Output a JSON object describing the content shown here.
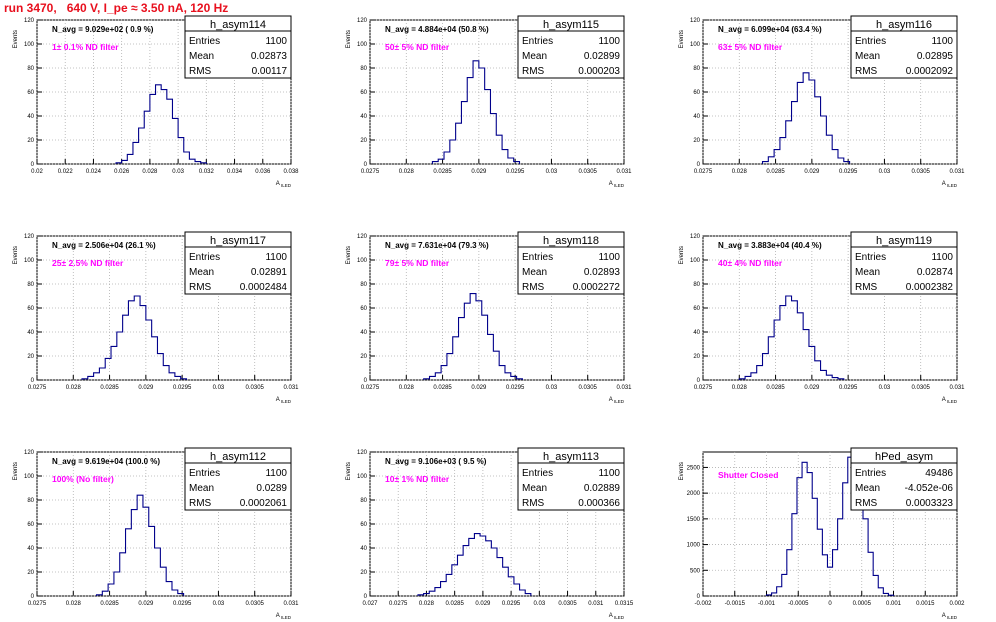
{
  "page": {
    "title": "run 3470,   640 V, I_pe ≈ 3.50 nA, 120 Hz"
  },
  "chart_data": [
    {
      "type": "histogram",
      "hist_name": "h_asym114",
      "navg_text": "N_avg = 9.029e+02 ( 0.9 %)",
      "filter_text": "1± 0.1% ND filter",
      "stats": {
        "entries_label": "Entries",
        "entries": "1100",
        "mean_label": "Mean",
        "mean": "0.02873",
        "rms_label": "RMS",
        "rms": "0.00117"
      },
      "ylabel": "Events",
      "xlabel": "A_ILED",
      "xlim": [
        0.02,
        0.038
      ],
      "ylim": [
        0,
        120
      ],
      "xticks": [
        0.02,
        0.022,
        0.024,
        0.026,
        0.028,
        0.03,
        0.032,
        0.034,
        0.036,
        0.038
      ],
      "xtick_labels": [
        "0.02",
        "0.022",
        "0.024",
        "0.026",
        "0.028",
        "0.03",
        "0.032",
        "0.034",
        "0.036",
        "0.038"
      ],
      "yticks": [
        0,
        20,
        40,
        60,
        80,
        100,
        120
      ],
      "ytick_labels": [
        "0",
        "20",
        "40",
        "60",
        "80",
        "100",
        "120"
      ],
      "x": [
        0.0258,
        0.0262,
        0.0266,
        0.027,
        0.0274,
        0.0278,
        0.0282,
        0.0286,
        0.029,
        0.0294,
        0.0298,
        0.0302,
        0.0306,
        0.031,
        0.0314,
        0.0318
      ],
      "y": [
        1,
        3,
        8,
        18,
        30,
        44,
        58,
        66,
        62,
        54,
        38,
        22,
        10,
        4,
        2,
        1
      ]
    },
    {
      "type": "histogram",
      "hist_name": "h_asym115",
      "navg_text": "N_avg = 4.884e+04 (50.8 %)",
      "filter_text": "50± 5% ND filter",
      "stats": {
        "entries_label": "Entries",
        "entries": "1100",
        "mean_label": "Mean",
        "mean": "0.02899",
        "rms_label": "RMS",
        "rms": "0.000203"
      },
      "ylabel": "Events",
      "xlabel": "A_ILED",
      "xlim": [
        0.0275,
        0.031
      ],
      "ylim": [
        0,
        120
      ],
      "xticks": [
        0.0275,
        0.028,
        0.0285,
        0.029,
        0.0295,
        0.03,
        0.0305,
        0.031
      ],
      "xtick_labels": [
        "0.0275",
        "0.028",
        "0.0285",
        "0.029",
        "0.0295",
        "0.03",
        "0.0305",
        "0.031"
      ],
      "yticks": [
        0,
        20,
        40,
        60,
        80,
        100,
        120
      ],
      "ytick_labels": [
        "0",
        "20",
        "40",
        "60",
        "80",
        "100",
        "120"
      ],
      "x": [
        0.0284,
        0.02848,
        0.02856,
        0.02864,
        0.02872,
        0.0288,
        0.02888,
        0.02896,
        0.02904,
        0.02912,
        0.0292,
        0.02928,
        0.02936,
        0.02944,
        0.02952
      ],
      "y": [
        2,
        4,
        10,
        20,
        34,
        52,
        72,
        86,
        80,
        62,
        42,
        24,
        12,
        5,
        2
      ]
    },
    {
      "type": "histogram",
      "hist_name": "h_asym116",
      "navg_text": "N_avg = 6.099e+04 (63.4 %)",
      "filter_text": "63± 5% ND filter",
      "stats": {
        "entries_label": "Entries",
        "entries": "1100",
        "mean_label": "Mean",
        "mean": "0.02895",
        "rms_label": "RMS",
        "rms": "0.0002092"
      },
      "ylabel": "Events",
      "xlabel": "A_ILED",
      "xlim": [
        0.0275,
        0.031
      ],
      "ylim": [
        0,
        120
      ],
      "xticks": [
        0.0275,
        0.028,
        0.0285,
        0.029,
        0.0295,
        0.03,
        0.0305,
        0.031
      ],
      "xtick_labels": [
        "0.0275",
        "0.028",
        "0.0285",
        "0.029",
        "0.0295",
        "0.03",
        "0.0305",
        "0.031"
      ],
      "yticks": [
        0,
        20,
        40,
        60,
        80,
        100,
        120
      ],
      "ytick_labels": [
        "0",
        "20",
        "40",
        "60",
        "80",
        "100",
        "120"
      ],
      "x": [
        0.02836,
        0.02844,
        0.02852,
        0.0286,
        0.02868,
        0.02876,
        0.02884,
        0.02892,
        0.029,
        0.02908,
        0.02916,
        0.02924,
        0.02932,
        0.0294,
        0.02948
      ],
      "y": [
        2,
        6,
        12,
        22,
        36,
        52,
        68,
        76,
        70,
        56,
        40,
        24,
        12,
        5,
        2
      ]
    },
    {
      "type": "histogram",
      "hist_name": "h_asym117",
      "navg_text": "N_avg = 2.506e+04 (26.1 %)",
      "filter_text": "25± 2.5% ND filter",
      "stats": {
        "entries_label": "Entries",
        "entries": "1100",
        "mean_label": "Mean",
        "mean": "0.02891",
        "rms_label": "RMS",
        "rms": "0.0002484"
      },
      "ylabel": "Events",
      "xlabel": "A_ILED",
      "xlim": [
        0.0275,
        0.031
      ],
      "ylim": [
        0,
        120
      ],
      "xticks": [
        0.0275,
        0.028,
        0.0285,
        0.029,
        0.0295,
        0.03,
        0.0305,
        0.031
      ],
      "xtick_labels": [
        "0.0275",
        "0.028",
        "0.0285",
        "0.029",
        "0.0295",
        "0.03",
        "0.0305",
        "0.031"
      ],
      "yticks": [
        0,
        20,
        40,
        60,
        80,
        100,
        120
      ],
      "ytick_labels": [
        "0",
        "20",
        "40",
        "60",
        "80",
        "100",
        "120"
      ],
      "x": [
        0.02816,
        0.02824,
        0.02832,
        0.0284,
        0.02848,
        0.02856,
        0.02864,
        0.02872,
        0.0288,
        0.02888,
        0.02896,
        0.02904,
        0.02912,
        0.0292,
        0.02928,
        0.02936,
        0.02944,
        0.02952
      ],
      "y": [
        1,
        3,
        6,
        10,
        18,
        28,
        40,
        54,
        66,
        70,
        62,
        50,
        36,
        22,
        12,
        6,
        3,
        1
      ]
    },
    {
      "type": "histogram",
      "hist_name": "h_asym118",
      "navg_text": "N_avg = 7.631e+04 (79.3 %)",
      "filter_text": "79± 5% ND filter",
      "stats": {
        "entries_label": "Entries",
        "entries": "1100",
        "mean_label": "Mean",
        "mean": "0.02893",
        "rms_label": "RMS",
        "rms": "0.0002272"
      },
      "ylabel": "Events",
      "xlabel": "A_ILED",
      "xlim": [
        0.0275,
        0.031
      ],
      "ylim": [
        0,
        120
      ],
      "xticks": [
        0.0275,
        0.028,
        0.0285,
        0.029,
        0.0295,
        0.03,
        0.0305,
        0.031
      ],
      "xtick_labels": [
        "0.0275",
        "0.028",
        "0.0285",
        "0.029",
        "0.0295",
        "0.03",
        "0.0305",
        "0.031"
      ],
      "yticks": [
        0,
        20,
        40,
        60,
        80,
        100,
        120
      ],
      "ytick_labels": [
        "0",
        "20",
        "40",
        "60",
        "80",
        "100",
        "120"
      ],
      "x": [
        0.02828,
        0.02836,
        0.02844,
        0.02852,
        0.0286,
        0.02868,
        0.02876,
        0.02884,
        0.02892,
        0.029,
        0.02908,
        0.02916,
        0.02924,
        0.02932,
        0.0294,
        0.02948,
        0.02956
      ],
      "y": [
        1,
        3,
        6,
        12,
        22,
        36,
        52,
        64,
        72,
        66,
        54,
        38,
        24,
        12,
        6,
        3,
        1
      ]
    },
    {
      "type": "histogram",
      "hist_name": "h_asym119",
      "navg_text": "N_avg = 3.883e+04 (40.4 %)",
      "filter_text": "40± 4% ND filter",
      "stats": {
        "entries_label": "Entries",
        "entries": "1100",
        "mean_label": "Mean",
        "mean": "0.02874",
        "rms_label": "RMS",
        "rms": "0.0002382"
      },
      "ylabel": "Events",
      "xlabel": "A_ILED",
      "xlim": [
        0.0275,
        0.031
      ],
      "ylim": [
        0,
        120
      ],
      "xticks": [
        0.0275,
        0.028,
        0.0285,
        0.029,
        0.0295,
        0.03,
        0.0305,
        0.031
      ],
      "xtick_labels": [
        "0.0275",
        "0.028",
        "0.0285",
        "0.029",
        "0.0295",
        "0.03",
        "0.0305",
        "0.031"
      ],
      "yticks": [
        0,
        20,
        40,
        60,
        80,
        100,
        120
      ],
      "ytick_labels": [
        "0",
        "20",
        "40",
        "60",
        "80",
        "100",
        "120"
      ],
      "x": [
        0.02804,
        0.02812,
        0.0282,
        0.02828,
        0.02836,
        0.02844,
        0.02852,
        0.0286,
        0.02868,
        0.02876,
        0.02884,
        0.02892,
        0.029,
        0.02908,
        0.02916,
        0.02924,
        0.02932,
        0.0294
      ],
      "y": [
        1,
        3,
        6,
        12,
        22,
        36,
        50,
        62,
        70,
        66,
        56,
        42,
        28,
        16,
        8,
        4,
        2,
        1
      ]
    },
    {
      "type": "histogram",
      "hist_name": "h_asym112",
      "navg_text": "N_avg = 9.619e+04 (100.0 %)",
      "filter_text": "100% (No filter)",
      "stats": {
        "entries_label": "Entries",
        "entries": "1100",
        "mean_label": "Mean",
        "mean": "0.0289",
        "rms_label": "RMS",
        "rms": "0.0002061"
      },
      "ylabel": "Events",
      "xlabel": "A_ILED",
      "xlim": [
        0.0275,
        0.031
      ],
      "ylim": [
        0,
        120
      ],
      "xticks": [
        0.0275,
        0.028,
        0.0285,
        0.029,
        0.0295,
        0.03,
        0.0305,
        0.031
      ],
      "xtick_labels": [
        "0.0275",
        "0.028",
        "0.0285",
        "0.029",
        "0.0295",
        "0.03",
        "0.0305",
        "0.031"
      ],
      "yticks": [
        0,
        20,
        40,
        60,
        80,
        100,
        120
      ],
      "ytick_labels": [
        "0",
        "20",
        "40",
        "60",
        "80",
        "100",
        "120"
      ],
      "x": [
        0.02836,
        0.02844,
        0.02852,
        0.0286,
        0.02868,
        0.02876,
        0.02884,
        0.02892,
        0.029,
        0.02908,
        0.02916,
        0.02924,
        0.02932,
        0.0294,
        0.02948
      ],
      "y": [
        1,
        4,
        10,
        20,
        36,
        56,
        72,
        84,
        74,
        58,
        40,
        24,
        12,
        5,
        2
      ]
    },
    {
      "type": "histogram",
      "hist_name": "h_asym113",
      "navg_text": "N_avg = 9.106e+03 ( 9.5 %)",
      "filter_text": "10± 1% ND filter",
      "stats": {
        "entries_label": "Entries",
        "entries": "1100",
        "mean_label": "Mean",
        "mean": "0.02889",
        "rms_label": "RMS",
        "rms": "0.000366"
      },
      "ylabel": "Events",
      "xlabel": "A_ILED",
      "xlim": [
        0.027,
        0.0315
      ],
      "ylim": [
        0,
        120
      ],
      "xticks": [
        0.027,
        0.0275,
        0.028,
        0.0285,
        0.029,
        0.0295,
        0.03,
        0.0305,
        0.031,
        0.0315
      ],
      "xtick_labels": [
        "0.027",
        "0.0275",
        "0.028",
        "0.0285",
        "0.029",
        "0.0295",
        "0.03",
        "0.0305",
        "0.031",
        "0.0315"
      ],
      "yticks": [
        0,
        20,
        40,
        60,
        80,
        100,
        120
      ],
      "ytick_labels": [
        "0",
        "20",
        "40",
        "60",
        "80",
        "100",
        "120"
      ],
      "x": [
        0.0279,
        0.028,
        0.0281,
        0.0282,
        0.0283,
        0.0284,
        0.0285,
        0.0286,
        0.0287,
        0.0288,
        0.0289,
        0.029,
        0.0291,
        0.0292,
        0.0293,
        0.0294,
        0.0295,
        0.0296,
        0.0297,
        0.0298
      ],
      "y": [
        1,
        2,
        4,
        7,
        12,
        18,
        26,
        34,
        42,
        48,
        52,
        50,
        46,
        40,
        32,
        24,
        16,
        10,
        5,
        2
      ]
    },
    {
      "type": "histogram",
      "hist_name": "hPed_asym",
      "navg_text": "",
      "filter_text": "Shutter Closed",
      "stats": {
        "entries_label": "Entries",
        "entries": "49486",
        "mean_label": "Mean",
        "mean": "-4.052e-06",
        "rms_label": "RMS",
        "rms": "0.0003323"
      },
      "ylabel": "Events",
      "xlabel": "A_ILED",
      "xlim": [
        -0.002,
        0.002
      ],
      "ylim": [
        0,
        2800
      ],
      "xticks": [
        -0.002,
        -0.0015,
        -0.001,
        -0.0005,
        0,
        0.0005,
        0.001,
        0.0015,
        0.002
      ],
      "xtick_labels": [
        "-0.002",
        "-0.0015",
        "-0.001",
        "-0.0005",
        "0",
        "0.0005",
        "0.001",
        "0.0015",
        "0.002"
      ],
      "yticks": [
        0,
        500,
        1000,
        1500,
        2000,
        2500
      ],
      "ytick_labels": [
        "0",
        "500",
        "1000",
        "1500",
        "2000",
        "2500"
      ],
      "x": [
        -0.00096,
        -0.00088,
        -0.0008,
        -0.00072,
        -0.00064,
        -0.00056,
        -0.00048,
        -0.0004,
        -0.00032,
        -0.00024,
        -0.00016,
        -8e-05,
        0,
        8e-05,
        0.00016,
        0.00024,
        0.00032,
        0.0004,
        0.00048,
        0.00056,
        0.00064,
        0.00072,
        0.0008,
        0.00088,
        0.00096
      ],
      "y": [
        20,
        60,
        180,
        420,
        900,
        1600,
        2300,
        2600,
        2400,
        1900,
        1300,
        800,
        560,
        900,
        1500,
        2200,
        2700,
        2650,
        2200,
        1500,
        850,
        400,
        160,
        50,
        15
      ]
    }
  ]
}
